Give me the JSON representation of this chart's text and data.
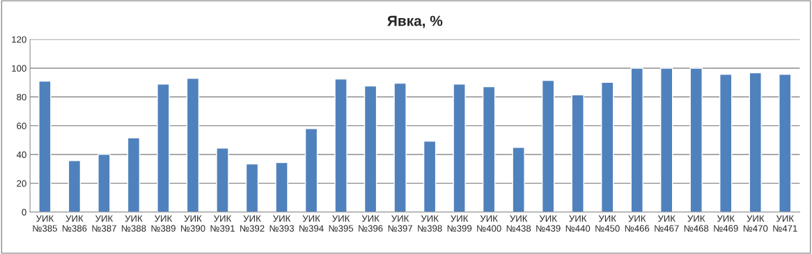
{
  "chart_data": {
    "type": "bar",
    "title": "Явка, %",
    "categories": [
      "УИК\n№385",
      "УИК\n№386",
      "УИК\n№387",
      "УИК\n№388",
      "УИК\n№389",
      "УИК\n№390",
      "УИК\n№391",
      "УИК\n№392",
      "УИК\n№393",
      "УИК\n№394",
      "УИК\n№395",
      "УИК\n№396",
      "УИК\n№397",
      "УИК\n№398",
      "УИК\n№399",
      "УИК\n№400",
      "УИК\n№438",
      "УИК\n№439",
      "УИК\n№440",
      "УИК\n№450",
      "УИК\n№466",
      "УИК\n№467",
      "УИК\n№468",
      "УИК\n№469",
      "УИК\n№470",
      "УИК\n№471"
    ],
    "values": [
      91.0,
      35.8,
      40.1,
      51.6,
      89.0,
      92.9,
      44.5,
      33.5,
      34.4,
      58.0,
      92.4,
      87.6,
      89.5,
      49.3,
      89.0,
      87.1,
      45.0,
      91.5,
      81.4,
      90.1,
      100,
      100,
      100,
      95.7,
      96.8,
      95.7
    ],
    "color": "#4f81bd",
    "ylim": [
      0,
      120
    ],
    "yticks": [
      0,
      20,
      40,
      60,
      80,
      100,
      120
    ],
    "grid": "y"
  }
}
